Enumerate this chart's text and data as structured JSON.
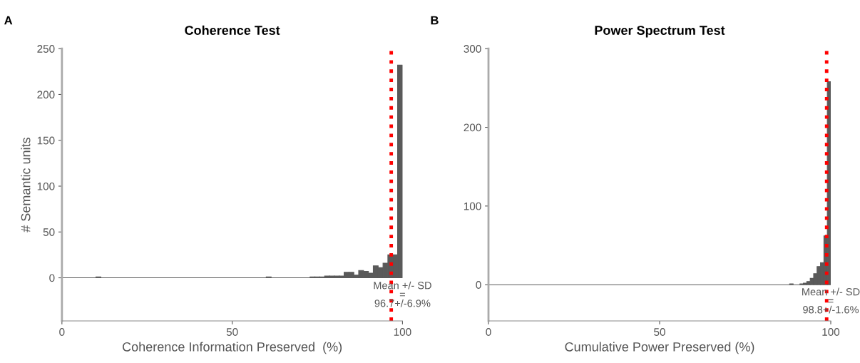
{
  "chart_data": [
    {
      "type": "histogram",
      "title": "Coherence Test",
      "xlabel": "Coherence Information Preserved  (%)",
      "ylabel": "# Semantic units",
      "bins": [
        0,
        10,
        11.43,
        60,
        61.43,
        72.86,
        74.29,
        75.71,
        77.14,
        78.57,
        80,
        81.43,
        82.86,
        84.29,
        85.71,
        87.14,
        88.57,
        90,
        91.43,
        92.86,
        94.29,
        95.71,
        97.14,
        98.57,
        100
      ],
      "values": [
        0,
        1,
        0,
        1,
        0,
        1,
        1,
        1,
        2,
        2,
        2,
        2,
        6,
        6,
        3,
        8,
        7,
        5,
        13,
        11,
        16,
        25,
        25,
        232
      ],
      "color": "#5a5a5a",
      "xlim": [
        0,
        100
      ],
      "xticks": [
        0,
        50,
        100
      ],
      "ylim": [
        -47,
        250
      ],
      "yticks": [
        0,
        50,
        100,
        150,
        200,
        250
      ],
      "ref_lines": [
        {
          "axis": "x",
          "value": 96.7,
          "color": "#ff0000",
          "line_style": "dotted"
        }
      ],
      "annotations": [
        "A",
        "Mean +/- SD\n=\n96.7+/-6.9%"
      ]
    },
    {
      "type": "histogram",
      "title": "Power Spectrum Test",
      "xlabel": "Cumulative Power Preserved (%)",
      "bins": [
        0,
        88,
        89,
        91,
        92,
        93,
        94,
        95,
        96,
        97,
        98,
        99,
        100
      ],
      "values": [
        0,
        1,
        0,
        1,
        2,
        4,
        8,
        14,
        23,
        28,
        62,
        258
      ],
      "color": "#5a5a5a",
      "xlim": [
        0,
        100
      ],
      "xticks": [
        0,
        50,
        100
      ],
      "ylim": [
        -46,
        300
      ],
      "yticks": [
        0,
        100,
        200,
        300
      ],
      "ref_lines": [
        {
          "axis": "x",
          "value": 98.8,
          "color": "#ff0000",
          "line_style": "dotted"
        }
      ],
      "annotations": [
        "B",
        "Mean +/- SD\n=\n98.8+/-1.6%"
      ]
    }
  ]
}
